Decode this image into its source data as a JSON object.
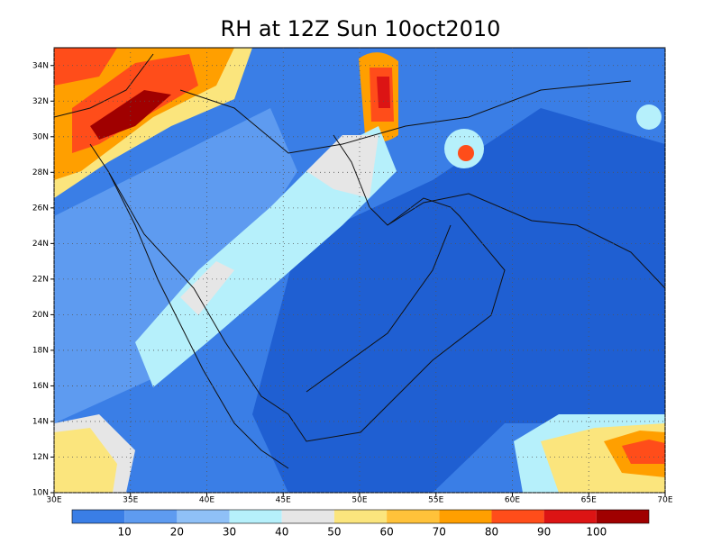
{
  "title": "RH at 12Z Sun 10oct2010",
  "map": {
    "xlim": [
      30,
      70
    ],
    "ylim": [
      10,
      35
    ],
    "xticks": [
      {
        "value": 30,
        "label": "30E"
      },
      {
        "value": 35,
        "label": "35E"
      },
      {
        "value": 40,
        "label": "40E"
      },
      {
        "value": 45,
        "label": "45E"
      },
      {
        "value": 50,
        "label": "50E"
      },
      {
        "value": 55,
        "label": "55E"
      },
      {
        "value": 60,
        "label": "60E"
      },
      {
        "value": 65,
        "label": "65E"
      },
      {
        "value": 70,
        "label": "70E"
      }
    ],
    "yticks": [
      {
        "value": 10,
        "label": "10N"
      },
      {
        "value": 12,
        "label": "12N"
      },
      {
        "value": 14,
        "label": "14N"
      },
      {
        "value": 16,
        "label": "16N"
      },
      {
        "value": 18,
        "label": "18N"
      },
      {
        "value": 20,
        "label": "20N"
      },
      {
        "value": 22,
        "label": "22N"
      },
      {
        "value": 24,
        "label": "24N"
      },
      {
        "value": 26,
        "label": "26N"
      },
      {
        "value": 28,
        "label": "28N"
      },
      {
        "value": 30,
        "label": "30N"
      },
      {
        "value": 32,
        "label": "32N"
      },
      {
        "value": 34,
        "label": "34N"
      }
    ]
  },
  "colorbar": {
    "colors": [
      "#1f5fd2",
      "#3a7ee6",
      "#5e9bf0",
      "#8fc0f7",
      "#b6f0fb",
      "#e6e6e6",
      "#fbe57d",
      "#ffc23a",
      "#ff9f00",
      "#ff4d1a",
      "#dc1414",
      "#a00000"
    ],
    "labels": [
      10,
      20,
      30,
      40,
      50,
      60,
      70,
      80,
      90,
      100
    ]
  }
}
